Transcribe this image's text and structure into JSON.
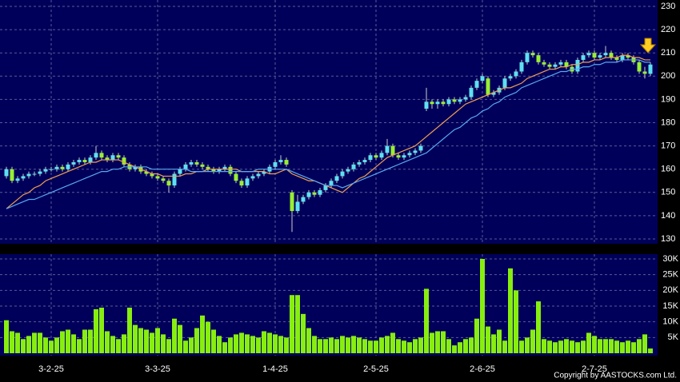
{
  "chart_data": {
    "type": "candlestick",
    "categories": [
      null,
      null,
      null,
      null,
      null,
      null,
      null,
      null,
      "3-2-25",
      null,
      null,
      null,
      null,
      null,
      null,
      null,
      null,
      null,
      null,
      null,
      null,
      null,
      null,
      null,
      null,
      null,
      null,
      "3-3-25",
      null,
      null,
      null,
      null,
      null,
      null,
      null,
      null,
      null,
      null,
      null,
      null,
      null,
      null,
      null,
      null,
      null,
      null,
      null,
      null,
      "1-4-25",
      null,
      null,
      null,
      null,
      null,
      null,
      null,
      null,
      null,
      null,
      null,
      null,
      null,
      null,
      null,
      null,
      null,
      "2-5-25",
      null,
      null,
      null,
      null,
      null,
      null,
      null,
      null,
      null,
      null,
      null,
      null,
      null,
      null,
      null,
      null,
      null,
      null,
      "2-6-25",
      null,
      null,
      null,
      null,
      null,
      null,
      null,
      null,
      null,
      null,
      null,
      null,
      null,
      null,
      null,
      null,
      null,
      null,
      null,
      "2-7-25",
      null,
      null,
      null,
      null,
      null,
      null,
      null,
      null,
      null,
      null
    ],
    "open": [
      157,
      160,
      155,
      156,
      157,
      158,
      158,
      159,
      160,
      160,
      161,
      160,
      162,
      163,
      164,
      163,
      165,
      167,
      165,
      164,
      166,
      165,
      162,
      160,
      161,
      159,
      158,
      157,
      156,
      155,
      153,
      158,
      160,
      162,
      163,
      162,
      161,
      160,
      159,
      160,
      161,
      158,
      155,
      153,
      156,
      157,
      158,
      159,
      161,
      163,
      164,
      150,
      142,
      146,
      148,
      150,
      149,
      151,
      153,
      155,
      157,
      159,
      160,
      162,
      163,
      164,
      166,
      165,
      167,
      170,
      166,
      165,
      166,
      167,
      168,
      186,
      189,
      188,
      189,
      188,
      190,
      189,
      190,
      191,
      195,
      198,
      199,
      192,
      193,
      195,
      199,
      200,
      202,
      206,
      210,
      209,
      206,
      205,
      204,
      205,
      206,
      204,
      202,
      207,
      209,
      210,
      208,
      209,
      210,
      208,
      207,
      209,
      208,
      206,
      202,
      201
    ],
    "high": [
      161,
      161,
      157,
      158,
      159,
      159,
      160,
      161,
      161,
      162,
      162,
      163,
      164,
      165,
      165,
      166,
      170,
      168,
      166,
      167,
      167,
      166,
      163,
      162,
      162,
      160,
      159,
      158,
      157,
      156,
      159,
      161,
      163,
      164,
      164,
      163,
      162,
      161,
      161,
      162,
      162,
      159,
      156,
      157,
      158,
      159,
      160,
      162,
      164,
      166,
      165,
      151,
      149,
      149,
      151,
      151,
      152,
      154,
      156,
      158,
      160,
      161,
      163,
      164,
      165,
      167,
      167,
      168,
      173,
      171,
      167,
      167,
      168,
      169,
      171,
      195,
      190,
      190,
      190,
      191,
      191,
      191,
      192,
      196,
      199,
      201,
      200,
      194,
      196,
      200,
      201,
      203,
      207,
      211,
      211,
      210,
      207,
      206,
      206,
      207,
      207,
      205,
      208,
      210,
      211,
      211,
      210,
      213,
      211,
      209,
      210,
      210,
      209,
      207,
      204,
      206
    ],
    "low": [
      156,
      154,
      154,
      155,
      156,
      157,
      157,
      158,
      159,
      159,
      159,
      159,
      161,
      162,
      162,
      162,
      164,
      164,
      163,
      163,
      164,
      161,
      159,
      159,
      158,
      157,
      156,
      155,
      154,
      150,
      152,
      157,
      159,
      161,
      161,
      160,
      159,
      158,
      158,
      159,
      157,
      154,
      152,
      152,
      155,
      156,
      157,
      158,
      160,
      162,
      161,
      133,
      141,
      145,
      147,
      148,
      148,
      150,
      152,
      154,
      156,
      158,
      159,
      161,
      162,
      163,
      164,
      164,
      166,
      165,
      164,
      164,
      165,
      166,
      167,
      185,
      186,
      186,
      187,
      187,
      188,
      188,
      189,
      190,
      194,
      197,
      191,
      191,
      192,
      194,
      198,
      199,
      201,
      205,
      208,
      205,
      204,
      203,
      203,
      204,
      203,
      201,
      201,
      206,
      208,
      207,
      207,
      208,
      207,
      206,
      206,
      207,
      205,
      201,
      199,
      200
    ],
    "close": [
      160,
      155,
      156,
      157,
      158,
      158,
      159,
      160,
      160,
      161,
      160,
      162,
      163,
      164,
      163,
      165,
      167,
      165,
      164,
      166,
      165,
      162,
      160,
      161,
      159,
      158,
      157,
      156,
      155,
      153,
      158,
      160,
      162,
      163,
      162,
      161,
      160,
      159,
      160,
      161,
      158,
      155,
      153,
      156,
      157,
      158,
      159,
      161,
      163,
      164,
      162,
      142,
      146,
      148,
      150,
      149,
      151,
      153,
      155,
      157,
      159,
      160,
      162,
      163,
      164,
      166,
      165,
      167,
      170,
      166,
      165,
      166,
      167,
      168,
      170,
      189,
      188,
      189,
      188,
      190,
      189,
      190,
      191,
      195,
      198,
      200,
      192,
      193,
      195,
      199,
      200,
      202,
      206,
      210,
      209,
      206,
      205,
      204,
      205,
      206,
      204,
      202,
      207,
      209,
      210,
      208,
      209,
      210,
      208,
      207,
      209,
      208,
      206,
      202,
      201,
      205
    ],
    "volume": [
      10500,
      7000,
      6500,
      4500,
      5500,
      6500,
      6500,
      5000,
      4000,
      5000,
      7000,
      7500,
      6000,
      4500,
      7500,
      7500,
      14000,
      14500,
      7000,
      5500,
      4500,
      6000,
      14500,
      9000,
      8000,
      7500,
      6500,
      8000,
      6000,
      4500,
      11000,
      9000,
      4000,
      5000,
      8000,
      12000,
      10000,
      7500,
      5500,
      3500,
      5000,
      6000,
      6500,
      6000,
      5500,
      5000,
      7000,
      6500,
      6000,
      5500,
      5000,
      18500,
      18500,
      12500,
      8000,
      5500,
      4500,
      4500,
      5000,
      4500,
      5500,
      5000,
      5500,
      5000,
      4500,
      4000,
      4000,
      5000,
      5500,
      6500,
      4500,
      4000,
      3500,
      4500,
      5000,
      20500,
      6500,
      7000,
      7000,
      4500,
      2500,
      3500,
      4500,
      5000,
      11000,
      30000,
      8500,
      6000,
      7500,
      4000,
      27000,
      20000,
      4000,
      5000,
      7500,
      16500,
      4500,
      4000,
      3500,
      4000,
      4500,
      4000,
      3500,
      4000,
      6500,
      5500,
      4500,
      4500,
      4500,
      4000,
      3500,
      4000,
      3500,
      4500,
      6000,
      1500
    ],
    "lines": [
      {
        "color": "#f0a050",
        "values": [
          143,
          145,
          147,
          149,
          150,
          152,
          153,
          155,
          156,
          157,
          158,
          159,
          160,
          161,
          162,
          163,
          163,
          164,
          164,
          164,
          164,
          163,
          162,
          161,
          160,
          159,
          158,
          158,
          157,
          157,
          157,
          157,
          158,
          158,
          159,
          159,
          160,
          160,
          160,
          160,
          160,
          160,
          159,
          159,
          159,
          159,
          159,
          158,
          158,
          159,
          160,
          158,
          157,
          156,
          155,
          155,
          154,
          153,
          152,
          151,
          150,
          152,
          154,
          156,
          157,
          159,
          161,
          163,
          165,
          166,
          167,
          168,
          169,
          170,
          172,
          174,
          176,
          178,
          180,
          182,
          184,
          186,
          188,
          189,
          190,
          191,
          192,
          193,
          194,
          195,
          195,
          196,
          197,
          199,
          200,
          201,
          202,
          203,
          203,
          204,
          204,
          205,
          205,
          206,
          206,
          207,
          207,
          208,
          208,
          208,
          209,
          209,
          208,
          208,
          207,
          207
        ]
      },
      {
        "color": "#5aa8f0",
        "values": [
          143,
          144,
          145,
          146,
          147,
          147,
          148,
          149,
          150,
          151,
          152,
          153,
          154,
          155,
          156,
          157,
          158,
          159,
          159,
          160,
          160,
          161,
          161,
          161,
          161,
          161,
          160,
          160,
          160,
          160,
          160,
          160,
          160,
          159,
          159,
          159,
          159,
          159,
          159,
          159,
          159,
          159,
          159,
          159,
          159,
          160,
          160,
          160,
          160,
          160,
          160,
          159,
          158,
          157,
          156,
          155,
          154,
          153,
          153,
          153,
          152,
          153,
          154,
          155,
          156,
          157,
          158,
          159,
          160,
          161,
          162,
          163,
          164,
          165,
          166,
          167,
          169,
          171,
          173,
          175,
          177,
          178,
          180,
          182,
          183,
          185,
          186,
          188,
          189,
          191,
          192,
          193,
          195,
          196,
          197,
          198,
          199,
          200,
          201,
          202,
          202,
          203,
          203,
          204,
          204,
          205,
          205,
          206,
          206,
          206,
          207,
          207,
          207,
          207,
          206,
          206
        ]
      }
    ],
    "up_color": "#5ee0f0",
    "down_color": "#99ee33",
    "volume_color": "#88ee11",
    "ylim": [
      130,
      230
    ],
    "yticks": [
      130,
      140,
      150,
      160,
      170,
      180,
      190,
      200,
      210,
      220,
      230
    ],
    "volume_lim": [
      0,
      30000
    ],
    "volume_ticks": [
      {
        "value": 5000,
        "label": "5K"
      },
      {
        "value": 10000,
        "label": "10K"
      },
      {
        "value": 15000,
        "label": "15K"
      },
      {
        "value": 20000,
        "label": "20K"
      },
      {
        "value": 25000,
        "label": "25K"
      },
      {
        "value": 30000,
        "label": "30K"
      }
    ],
    "grid": true,
    "footer": "Copyright by AASTOCKS.com Ltd."
  }
}
